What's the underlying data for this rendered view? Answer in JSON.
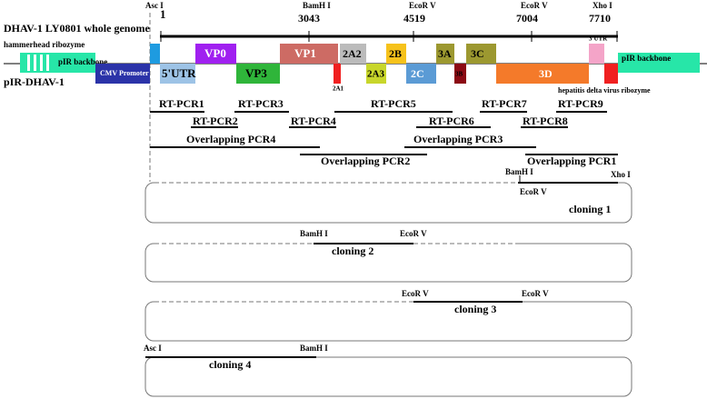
{
  "title": "DHAV-1 LY0801 whole genome",
  "construct": "pIR-DHAV-1",
  "asc_site": "Asc I",
  "genome_positions": [
    {
      "position": 1
    },
    {
      "enzyme": "BamH I",
      "position": 3043
    },
    {
      "enzyme": "EcoR V",
      "position": 4519
    },
    {
      "enzyme": "EcoR V",
      "position": 7004
    },
    {
      "enzyme": "Xho I",
      "position": 7710
    }
  ],
  "elements": [
    "pIR backbone",
    "pIR backbone",
    "CMV Promoter",
    "hammerhead ribozyme",
    "5'UTR",
    "VP0",
    "VP3",
    "VP1",
    "2A1",
    "2A2",
    "2A3",
    "2B",
    "2C",
    "3A",
    "3B",
    "3C",
    "3D",
    "3'UTR",
    "hepatitis delta virus ribozyme"
  ],
  "rt_pcr": [
    "RT-PCR1",
    "RT-PCR2",
    "RT-PCR3",
    "RT-PCR4",
    "RT-PCR5",
    "RT-PCR6",
    "RT-PCR7",
    "RT-PCR8",
    "RT-PCR9"
  ],
  "overlapping_pcr": [
    "Overlapping PCR4",
    "Overlapping PCR3",
    "Overlapping PCR2",
    "Overlapping PCR1"
  ],
  "clonings": [
    {
      "name": "cloning 1",
      "sites": [
        "BamH I",
        "EcoR V",
        "Xho I"
      ]
    },
    {
      "name": "cloning 2",
      "sites": [
        "BamH I",
        "EcoR V"
      ]
    },
    {
      "name": "cloning 3",
      "sites": [
        "EcoR V",
        "EcoR V"
      ]
    },
    {
      "name": "cloning 4",
      "sites": [
        "Asc I",
        "BamH I"
      ]
    }
  ]
}
